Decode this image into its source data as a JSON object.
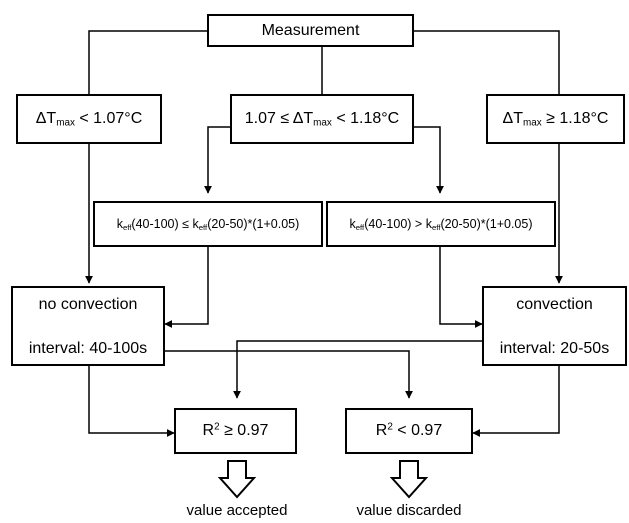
{
  "nodes": {
    "measurement": "Measurement",
    "dt_low": {
      "delta": "ΔT",
      "sub": "max",
      "rest": " < 1.07°C"
    },
    "dt_mid": {
      "pre": "1.07 ≤ ΔT",
      "sub": "max",
      "rest": " < 1.18°C"
    },
    "dt_high": {
      "delta": "ΔT",
      "sub": "max",
      "rest": " ≥ 1.18°C"
    },
    "keff_le": {
      "k1": "k",
      "s1": "eff",
      "a1": "(40-100) ≤ k",
      "s2": "eff",
      "a2": "(20-50)*(1+0.05)"
    },
    "keff_gt": {
      "k1": "k",
      "s1": "eff",
      "a1": "(40-100) > k",
      "s2": "eff",
      "a2": "(20-50)*(1+0.05)"
    },
    "no_convection": {
      "line1": "no convection",
      "line2": "interval: 40-100s"
    },
    "convection": {
      "line1": "convection",
      "line2": "interval: 20-50s"
    },
    "r2_ge": {
      "r": "R",
      "sup": "2",
      "rest": " ≥ 0.97"
    },
    "r2_lt": {
      "r": "R",
      "sup": "2",
      "rest": " < 0.97"
    }
  },
  "outcomes": {
    "accepted": "value accepted",
    "discarded": "value discarded"
  }
}
